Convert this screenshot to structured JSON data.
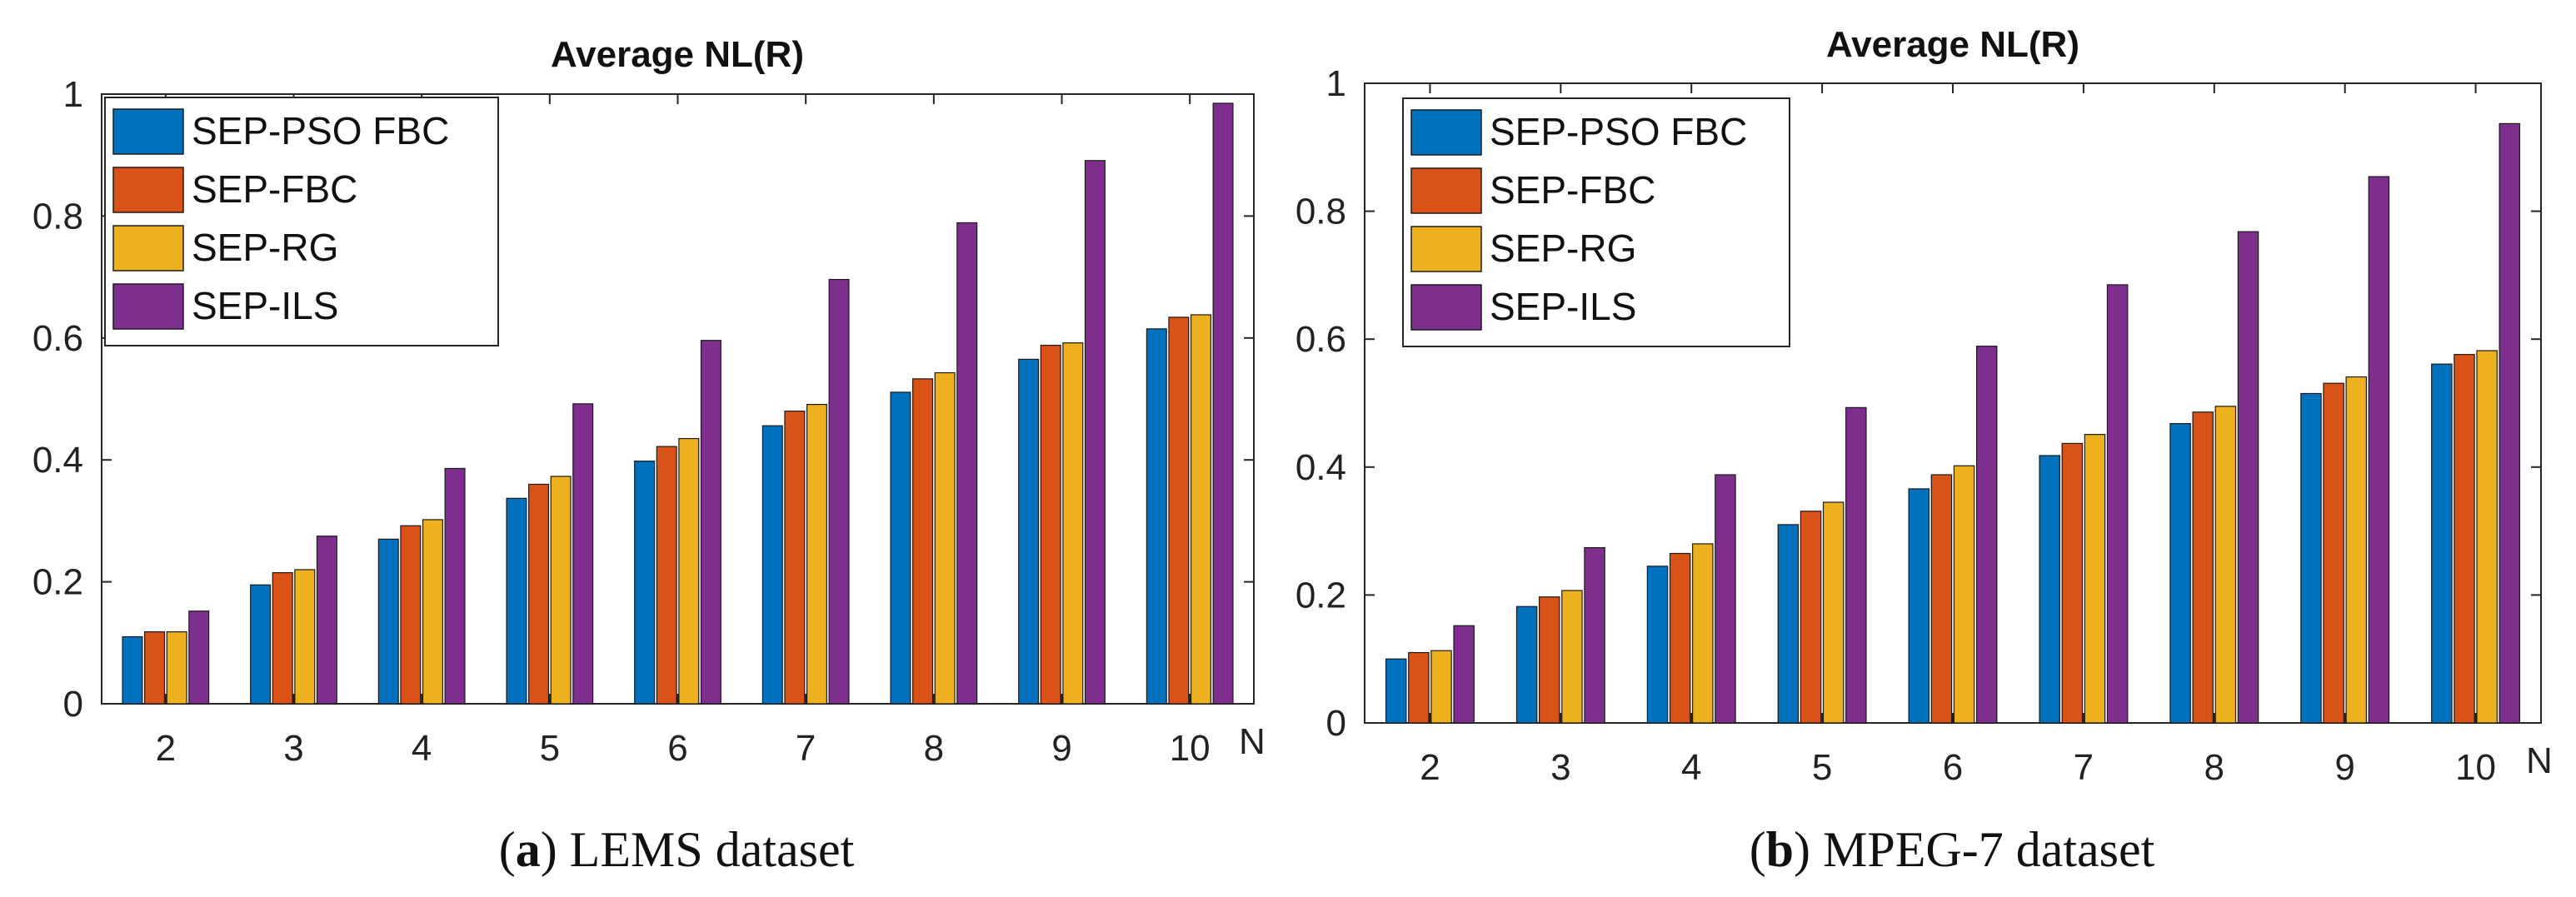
{
  "chart_data": [
    {
      "type": "bar",
      "title": "Average NL(R)",
      "caption_letter": "a",
      "caption_text": "LEMS dataset",
      "xlabel": "N",
      "ylabel": "",
      "ylim": [
        0,
        1
      ],
      "yticks": [
        "0",
        "0.2",
        "0.4",
        "0.6",
        "0.8",
        "1"
      ],
      "categories": [
        "2",
        "3",
        "4",
        "5",
        "6",
        "7",
        "8",
        "9",
        "10"
      ],
      "legend_position": "top-left",
      "series": [
        {
          "name": "SEP-PSO FBC",
          "color": "#0072BD",
          "values": [
            0.11,
            0.195,
            0.27,
            0.337,
            0.398,
            0.456,
            0.511,
            0.565,
            0.615
          ]
        },
        {
          "name": "SEP-FBC",
          "color": "#D95319",
          "values": [
            0.118,
            0.215,
            0.292,
            0.36,
            0.422,
            0.48,
            0.533,
            0.588,
            0.634
          ]
        },
        {
          "name": "SEP-RG",
          "color": "#EDB120",
          "values": [
            0.118,
            0.22,
            0.302,
            0.373,
            0.435,
            0.491,
            0.543,
            0.592,
            0.638
          ]
        },
        {
          "name": "SEP-ILS",
          "color": "#7E2F8E",
          "values": [
            0.152,
            0.275,
            0.386,
            0.492,
            0.596,
            0.696,
            0.789,
            0.891,
            0.985
          ]
        }
      ]
    },
    {
      "type": "bar",
      "title": "Average NL(R)",
      "caption_letter": "b",
      "caption_text": "MPEG-7 dataset",
      "xlabel": "N",
      "ylabel": "",
      "ylim": [
        0,
        1
      ],
      "yticks": [
        "0",
        "0.2",
        "0.4",
        "0.6",
        "0.8",
        "1"
      ],
      "categories": [
        "2",
        "3",
        "4",
        "5",
        "6",
        "7",
        "8",
        "9",
        "10"
      ],
      "legend_position": "top-left",
      "series": [
        {
          "name": "SEP-PSO FBC",
          "color": "#0072BD",
          "values": [
            0.1,
            0.182,
            0.245,
            0.31,
            0.366,
            0.418,
            0.468,
            0.515,
            0.561
          ]
        },
        {
          "name": "SEP-FBC",
          "color": "#D95319",
          "values": [
            0.11,
            0.197,
            0.265,
            0.331,
            0.388,
            0.437,
            0.486,
            0.531,
            0.576
          ]
        },
        {
          "name": "SEP-RG",
          "color": "#EDB120",
          "values": [
            0.113,
            0.207,
            0.28,
            0.345,
            0.402,
            0.451,
            0.495,
            0.541,
            0.582
          ]
        },
        {
          "name": "SEP-ILS",
          "color": "#7E2F8E",
          "values": [
            0.152,
            0.274,
            0.388,
            0.493,
            0.589,
            0.685,
            0.768,
            0.854,
            0.937
          ]
        }
      ]
    }
  ]
}
